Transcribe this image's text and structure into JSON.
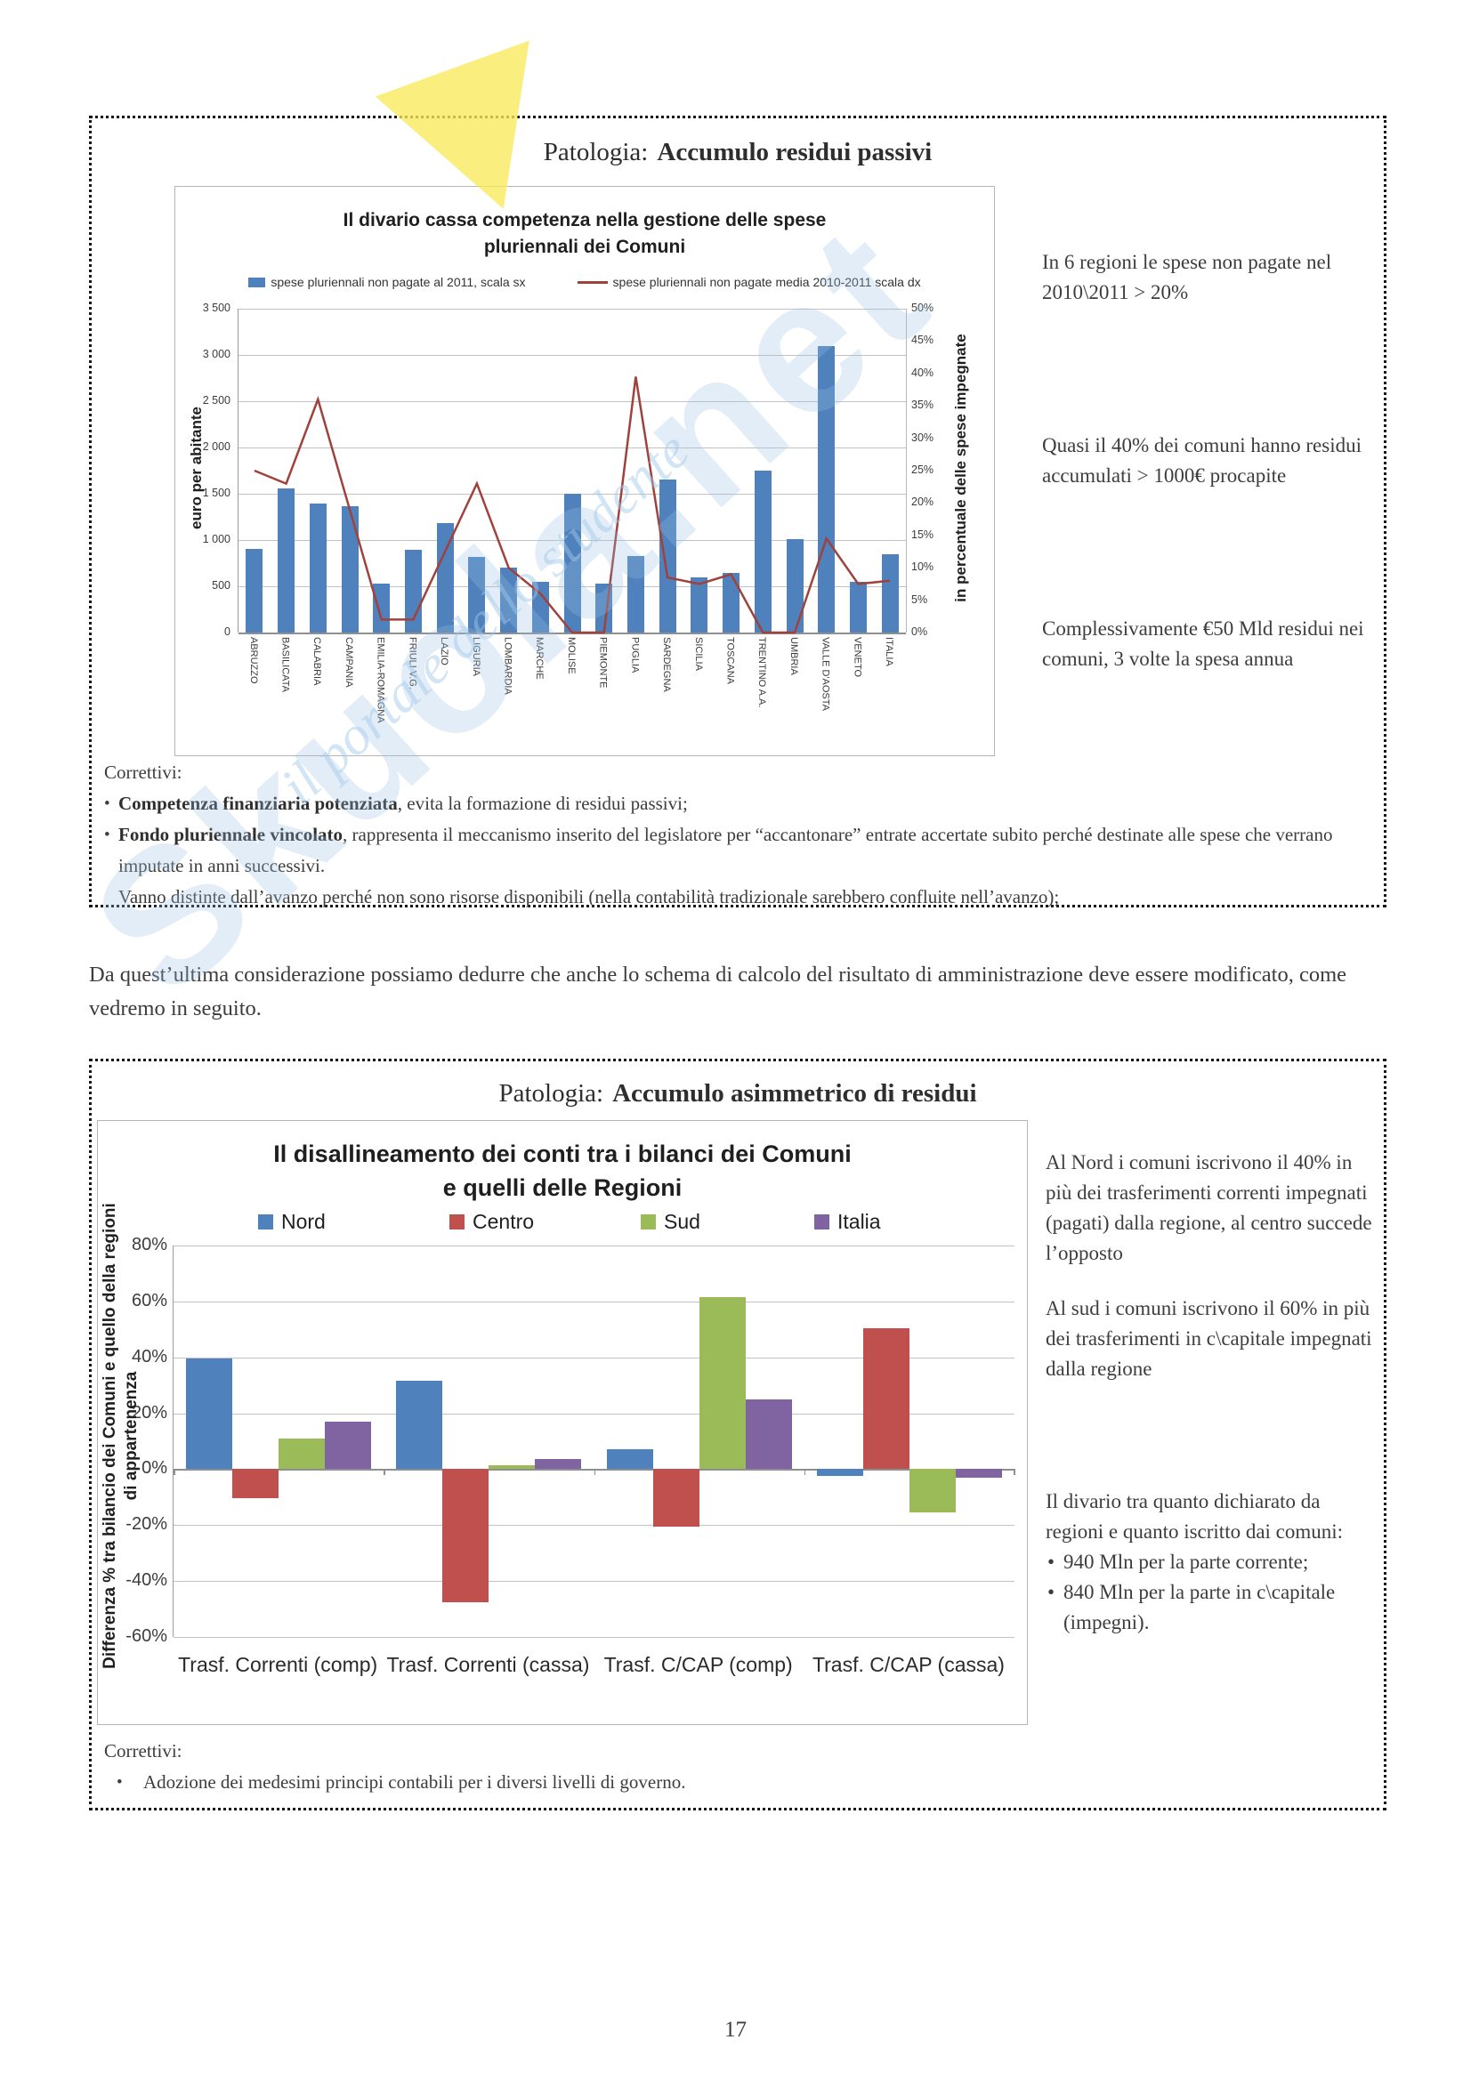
{
  "page": {
    "number": "17"
  },
  "watermark": {
    "brand": "Skuola.net",
    "slogan": "il portale dello studente"
  },
  "paragraph": "Da quest’ultima considerazione possiamo dedurre che anche lo schema di calcolo del risultato di amministrazione deve essere modificato, come vedremo in seguito.",
  "box1": {
    "title_prefix": "Patologia:",
    "title": "Accumulo residui passivi",
    "notes": [
      "In 6 regioni le spese non pagate nel 2010\\2011 > 20%",
      "Quasi il 40% dei comuni hanno residui accumulati > 1000€ procapite",
      "Complessivamente €50 Mld residui nei comuni, 3 volte la spesa annua"
    ],
    "correttivi": {
      "heading": "Correttivi:",
      "items": [
        {
          "bold": "Competenza finanziaria potenziata",
          "text": ", evita la formazione di residui passivi;"
        },
        {
          "bold": "Fondo pluriennale vincolato",
          "text": ", rappresenta il meccanismo inserito del legislatore per “accantonare” entrate accertate subito perché destinate alle spese che verrano imputate in anni successivi."
        }
      ],
      "footnote": "Vanno distinte dall’avanzo perché non sono risorse disponibili (nella contabilità tradizionale sarebbero confluite nell’avanzo);"
    }
  },
  "box2": {
    "title_prefix": "Patologia:",
    "title": "Accumulo asimmetrico di residui",
    "notes": [
      "Al Nord i comuni iscrivono il 40% in più dei trasferimenti correnti impegnati (pagati) dalla regione, al centro succede l’opposto",
      "Al sud i comuni iscrivono il 60% in più dei trasferimenti in c\\capitale impegnati dalla regione"
    ],
    "divario": {
      "intro": "Il divario tra quanto dichiarato da regioni e quanto iscritto dai comuni:",
      "bullets": [
        "940 Mln per la parte corrente;",
        "840 Mln per la parte in c\\capitale (impegni)."
      ]
    },
    "correttivi": {
      "heading": "Correttivi:",
      "items": [
        "Adozione dei medesimi principi contabili per i diversi livelli di governo."
      ]
    }
  },
  "chart_data": [
    {
      "id": "divario-cassa-competenza",
      "type": "bar",
      "subtype": "bar+line-dual-axis",
      "title": [
        "Il divario cassa competenza nella gestione delle spese",
        "pluriennali dei Comuni"
      ],
      "legend": [
        {
          "label": "spese pluriennali non pagate al 2011, scala sx",
          "marker": "bar",
          "color": "#4F81BD"
        },
        {
          "label": "spese pluriennali non pagate media 2010-2011 scala dx",
          "marker": "line",
          "color": "#A0423C"
        }
      ],
      "legend_position": "top",
      "grid": true,
      "ylabel_left": "euro per abitante",
      "ylabel_right": "in percentuale delle spese impegnate",
      "ylim_left": [
        0,
        3500
      ],
      "ylim_right": [
        0,
        50
      ],
      "left_ticks": [
        "3 500",
        "3 000",
        "2 500",
        "2 000",
        "1 500",
        "1 000",
        "500",
        "0"
      ],
      "right_ticks": [
        "50%",
        "45%",
        "40%",
        "35%",
        "30%",
        "25%",
        "20%",
        "15%",
        "10%",
        "5%",
        "0%"
      ],
      "categories": [
        "ABRUZZO",
        "BASILICATA",
        "CALABRIA",
        "CAMPANIA",
        "EMILIA-ROMAGNA",
        "FRIULI V.G.",
        "LAZIO",
        "LIGURIA",
        "LOMBARDIA",
        "MARCHE",
        "MOLISE",
        "PIEMONTE",
        "PUGLIA",
        "SARDEGNA",
        "SICILIA",
        "TOSCANA",
        "TRENTINO A.A.",
        "UMBRIA",
        "VALLE D'AOSTA",
        "VENETO",
        "ITALIA"
      ],
      "bars_euro_per_abitante": [
        900,
        1560,
        1390,
        1370,
        530,
        890,
        1180,
        820,
        700,
        550,
        1500,
        530,
        830,
        1650,
        600,
        640,
        1750,
        1010,
        3100,
        550,
        850
      ],
      "line_percent": [
        25,
        23,
        36,
        19,
        2,
        2,
        12.5,
        23,
        10,
        6,
        0,
        0,
        39.5,
        8.5,
        7.5,
        9,
        0,
        0,
        14.5,
        7.5,
        8
      ],
      "bar_color": "#4F81BD",
      "line_color": "#A0423C"
    },
    {
      "id": "disallineamento-conti",
      "type": "bar",
      "subtype": "grouped-bars",
      "title": [
        "Il disallineamento dei conti tra i bilanci dei Comuni",
        "e quelli delle Regioni"
      ],
      "legend_position": "top",
      "grid": true,
      "ylabel": "Differenza % tra bilancio dei Comuni e quello della regioni di appartenenza",
      "ylim": [
        -60,
        80
      ],
      "yticks": [
        "80%",
        "60%",
        "40%",
        "20%",
        "0%",
        "-20%",
        "-40%",
        "-60%"
      ],
      "categories": [
        "Trasf. Correnti (comp)",
        "Trasf. Correnti (cassa)",
        "Trasf. C/CAP (comp)",
        "Trasf. C/CAP (cassa)"
      ],
      "series": [
        {
          "name": "Nord",
          "color": "#4F81BD",
          "values": [
            39.5,
            31.5,
            7,
            -2.5
          ]
        },
        {
          "name": "Centro",
          "color": "#C0504D",
          "values": [
            -10.5,
            -47.5,
            -20.5,
            50.5
          ]
        },
        {
          "name": "Sud",
          "color": "#9BBB59",
          "values": [
            11,
            1.5,
            61.5,
            -15.5
          ]
        },
        {
          "name": "Italia",
          "color": "#8064A2",
          "values": [
            17,
            3.5,
            25,
            -3
          ]
        }
      ]
    }
  ]
}
